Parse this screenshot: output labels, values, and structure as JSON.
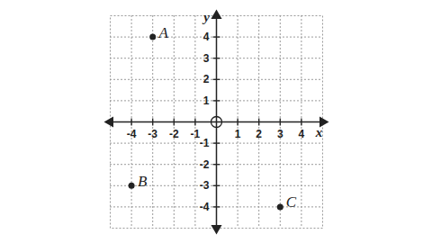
{
  "chart_data": {
    "type": "scatter",
    "x": [
      -3,
      -4,
      3
    ],
    "values": [
      4,
      -3,
      -4
    ],
    "point_labels": [
      "A",
      "B",
      "C"
    ],
    "x_label": "x",
    "y_label": "y",
    "xlim": [
      -5,
      5
    ],
    "ylim": [
      -5,
      5
    ],
    "xticks": [
      -4,
      -3,
      -2,
      -1,
      1,
      2,
      3,
      4
    ],
    "yticks": [
      -4,
      -3,
      -2,
      -1,
      1,
      2,
      3,
      4
    ],
    "grid": true,
    "color": "#222222",
    "marker": "circle"
  }
}
